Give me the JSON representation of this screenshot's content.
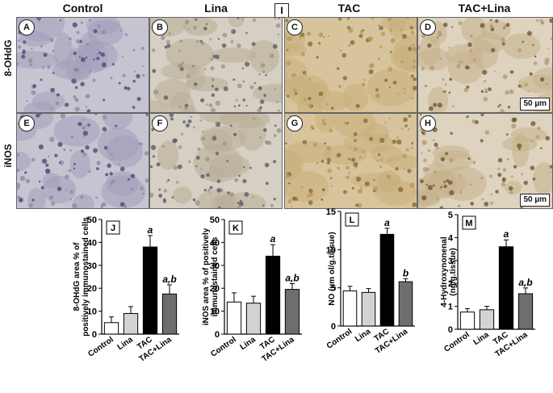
{
  "figure": {
    "panel_tag": "I",
    "columns": [
      "Control",
      "Lina",
      "TAC",
      "TAC+Lina"
    ],
    "rows": [
      "8-OHdG",
      "iNOS"
    ],
    "panels_row1": [
      "A",
      "B",
      "C",
      "D"
    ],
    "panels_row2": [
      "E",
      "F",
      "G",
      "H"
    ],
    "scale_bar": "50 µm"
  },
  "chart_data": [
    {
      "type": "bar",
      "panel": "J",
      "ylabel_line1": "8-OHdG area % of",
      "ylabel_line2": "positively immunostained cells",
      "categories": [
        "Control",
        "Lina",
        "TAC",
        "TAC+Lina"
      ],
      "values": [
        5,
        9,
        38,
        17.5
      ],
      "errors": [
        2.5,
        3,
        5,
        4
      ],
      "annotations": [
        "",
        "",
        "a",
        "a,b"
      ],
      "ylim": [
        0,
        50
      ],
      "yticks": [
        0,
        10,
        20,
        30,
        40,
        50
      ],
      "fills": [
        "#ffffff",
        "#d3d3d3",
        "#000000",
        "#6e6e6e"
      ]
    },
    {
      "type": "bar",
      "panel": "K",
      "ylabel_line1": "iNOS area % of positively",
      "ylabel_line2": "immunostained cells",
      "categories": [
        "Control",
        "Lina",
        "TAC",
        "TAC+Lina"
      ],
      "values": [
        14,
        13.5,
        34,
        19.5
      ],
      "errors": [
        4,
        3,
        5,
        2.5
      ],
      "annotations": [
        "",
        "",
        "a",
        "a,b"
      ],
      "ylim": [
        0,
        50
      ],
      "yticks": [
        0,
        10,
        20,
        30,
        40,
        50
      ],
      "fills": [
        "#ffffff",
        "#d3d3d3",
        "#000000",
        "#6e6e6e"
      ]
    },
    {
      "type": "bar",
      "panel": "L",
      "ylabel_line1": "NO (µm ol/g.tissue)",
      "ylabel_line2": "",
      "categories": [
        "Control",
        "Lina",
        "TAC",
        "TAC+Lina"
      ],
      "values": [
        4.6,
        4.4,
        12,
        5.8
      ],
      "errors": [
        0.6,
        0.5,
        0.8,
        0.4
      ],
      "annotations": [
        "",
        "",
        "a",
        "b"
      ],
      "ylim": [
        0,
        15
      ],
      "yticks": [
        0,
        5,
        10,
        15
      ],
      "fills": [
        "#ffffff",
        "#d3d3d3",
        "#000000",
        "#6e6e6e"
      ]
    },
    {
      "type": "bar",
      "panel": "M",
      "ylabel_line1": "4-Hydroxynonenal",
      "ylabel_line2": "(ng/g.tissue)",
      "categories": [
        "Control",
        "Lina",
        "TAC",
        "TAC+Lina"
      ],
      "values": [
        0.75,
        0.85,
        3.6,
        1.55
      ],
      "errors": [
        0.15,
        0.15,
        0.3,
        0.25
      ],
      "annotations": [
        "",
        "",
        "a",
        "a,b"
      ],
      "ylim": [
        0,
        5
      ],
      "yticks": [
        0,
        1,
        2,
        3,
        4,
        5
      ],
      "fills": [
        "#ffffff",
        "#d3d3d3",
        "#000000",
        "#6e6e6e"
      ]
    }
  ]
}
